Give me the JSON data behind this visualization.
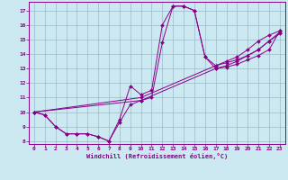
{
  "xlabel": "Windchill (Refroidissement éolien,°C)",
  "bg_color": "#cce8f0",
  "line_color": "#880088",
  "grid_color": "#99bbcc",
  "xlim": [
    -0.5,
    23.5
  ],
  "ylim": [
    7.8,
    17.6
  ],
  "yticks": [
    8,
    9,
    10,
    11,
    12,
    13,
    14,
    15,
    16,
    17
  ],
  "xticks": [
    0,
    1,
    2,
    3,
    4,
    5,
    6,
    7,
    8,
    9,
    10,
    11,
    12,
    13,
    14,
    15,
    16,
    17,
    18,
    19,
    20,
    21,
    22,
    23
  ],
  "series": [
    {
      "x": [
        0,
        1,
        2,
        3,
        4,
        5,
        6,
        7,
        8,
        9,
        10,
        11,
        12,
        13,
        14,
        15,
        16,
        17,
        18,
        19,
        20,
        21,
        22,
        23
      ],
      "y": [
        10.0,
        9.8,
        9.0,
        8.5,
        8.5,
        8.5,
        8.3,
        8.0,
        9.5,
        11.8,
        11.2,
        11.5,
        16.0,
        17.3,
        17.3,
        17.0,
        13.8,
        13.2,
        13.5,
        13.8,
        14.3,
        14.9,
        15.3,
        15.6
      ]
    },
    {
      "x": [
        0,
        1,
        2,
        3,
        4,
        5,
        6,
        7,
        8,
        9,
        10,
        11,
        12,
        13,
        14,
        15,
        16,
        17,
        18,
        19,
        20,
        21,
        22,
        23
      ],
      "y": [
        10.0,
        9.8,
        9.0,
        8.5,
        8.5,
        8.5,
        8.3,
        8.0,
        9.3,
        10.5,
        10.8,
        11.0,
        14.8,
        17.3,
        17.3,
        17.0,
        13.8,
        13.0,
        13.2,
        13.5,
        13.9,
        14.3,
        14.9,
        15.4
      ]
    },
    {
      "x": [
        0,
        10,
        17,
        18,
        19,
        20,
        21,
        22,
        23
      ],
      "y": [
        10.0,
        10.8,
        13.0,
        13.1,
        13.3,
        13.6,
        13.9,
        14.3,
        15.6
      ]
    },
    {
      "x": [
        0,
        10,
        17,
        18,
        19,
        20,
        21,
        22,
        23
      ],
      "y": [
        10.0,
        11.0,
        13.2,
        13.4,
        13.6,
        13.9,
        14.3,
        14.9,
        15.5
      ]
    }
  ]
}
